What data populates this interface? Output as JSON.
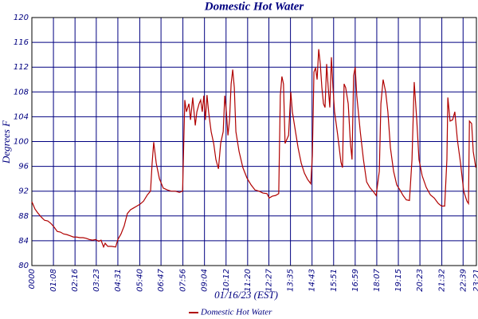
{
  "chart_data": {
    "type": "line",
    "title": "Domestic Hot Water",
    "x_label": "01/16/23 (EST)",
    "y_label": "Degrees F",
    "xlim": [
      0,
      1401
    ],
    "ylim": [
      80,
      120
    ],
    "xticks": [
      {
        "value": 0,
        "label": "0000"
      },
      {
        "value": 68,
        "label": "01:08"
      },
      {
        "value": 136,
        "label": "02:16"
      },
      {
        "value": 203,
        "label": "03:23"
      },
      {
        "value": 271,
        "label": "04:31"
      },
      {
        "value": 340,
        "label": "05:40"
      },
      {
        "value": 407,
        "label": "06:47"
      },
      {
        "value": 476,
        "label": "07:56"
      },
      {
        "value": 544,
        "label": "09:04"
      },
      {
        "value": 612,
        "label": "10:12"
      },
      {
        "value": 680,
        "label": "11:20"
      },
      {
        "value": 747,
        "label": "12:27"
      },
      {
        "value": 815,
        "label": "13:35"
      },
      {
        "value": 883,
        "label": "14:43"
      },
      {
        "value": 951,
        "label": "15:51"
      },
      {
        "value": 1019,
        "label": "16:59"
      },
      {
        "value": 1087,
        "label": "18:07"
      },
      {
        "value": 1155,
        "label": "19:15"
      },
      {
        "value": 1223,
        "label": "20:23"
      },
      {
        "value": 1292,
        "label": "21:32"
      },
      {
        "value": 1359,
        "label": "22:39"
      },
      {
        "value": 1401,
        "label": "23:21"
      }
    ],
    "yticks": [
      80,
      84,
      88,
      92,
      96,
      100,
      104,
      108,
      112,
      116,
      120
    ],
    "grid": true,
    "x": [
      0,
      10,
      20,
      30,
      40,
      50,
      60,
      70,
      80,
      90,
      100,
      110,
      121,
      131,
      141,
      151,
      161,
      171,
      181,
      191,
      201,
      211,
      218,
      226,
      231,
      239,
      251,
      264,
      271,
      281,
      291,
      301,
      311,
      321,
      331,
      341,
      352,
      364,
      374,
      379,
      384,
      392,
      402,
      414,
      427,
      439,
      452,
      465,
      475,
      482,
      487,
      495,
      500,
      507,
      515,
      520,
      527,
      532,
      537,
      542,
      547,
      552,
      557,
      565,
      573,
      580,
      588,
      595,
      603,
      608,
      613,
      618,
      623,
      628,
      633,
      638,
      643,
      653,
      665,
      678,
      691,
      703,
      716,
      728,
      741,
      748,
      758,
      768,
      778,
      783,
      788,
      793,
      798,
      809,
      816,
      821,
      829,
      839,
      849,
      859,
      869,
      879,
      884,
      889,
      894,
      899,
      904,
      909,
      914,
      919,
      924,
      929,
      934,
      939,
      944,
      949,
      954,
      964,
      974,
      979,
      984,
      989,
      997,
      1004,
      1009,
      1014,
      1019,
      1024,
      1035,
      1045,
      1055,
      1065,
      1075,
      1085,
      1095,
      1100,
      1107,
      1115,
      1122,
      1130,
      1140,
      1150,
      1160,
      1170,
      1180,
      1190,
      1198,
      1205,
      1213,
      1220,
      1230,
      1243,
      1256,
      1268,
      1281,
      1291,
      1301,
      1308,
      1311,
      1318,
      1326,
      1333,
      1341,
      1351,
      1361,
      1371,
      1376,
      1379,
      1386,
      1391,
      1399
    ],
    "series": [
      {
        "name": "Domestic Hot Water",
        "color": "#b00000",
        "values": [
          90.3,
          89.1,
          88.4,
          87.8,
          87.3,
          87.2,
          86.8,
          86.2,
          85.5,
          85.4,
          85.1,
          85.0,
          84.8,
          84.6,
          84.6,
          84.5,
          84.5,
          84.4,
          84.2,
          84.1,
          84.2,
          83.9,
          84.1,
          83.0,
          83.6,
          83.1,
          83.1,
          83.0,
          84.2,
          85.1,
          86.4,
          88.4,
          89.0,
          89.3,
          89.6,
          89.9,
          90.4,
          91.4,
          92.0,
          96.5,
          99.9,
          96.5,
          94.0,
          92.5,
          92.2,
          92.0,
          92.0,
          91.8,
          92.0,
          106.7,
          104.8,
          106.1,
          103.5,
          107.1,
          102.6,
          104.8,
          106.1,
          106.7,
          104.8,
          107.4,
          103.5,
          107.5,
          104.8,
          101.6,
          99.7,
          97.1,
          95.6,
          99.7,
          101.6,
          107.4,
          104.8,
          101.0,
          103.5,
          109.3,
          111.6,
          108.7,
          101.6,
          98.4,
          95.8,
          94.1,
          93.0,
          92.2,
          92.0,
          91.7,
          91.6,
          90.9,
          91.2,
          91.3,
          91.6,
          107.4,
          110.5,
          109.3,
          99.7,
          101.0,
          108.0,
          104.8,
          102.2,
          99.0,
          96.5,
          94.9,
          93.9,
          93.2,
          97.7,
          111.2,
          111.9,
          110.0,
          114.9,
          112.5,
          108.7,
          106.1,
          105.5,
          112.5,
          108.7,
          105.5,
          113.6,
          108.7,
          104.8,
          101.0,
          96.7,
          95.8,
          109.3,
          108.7,
          106.1,
          99.7,
          97.1,
          110.6,
          112.0,
          107.4,
          101.6,
          97.1,
          93.5,
          92.6,
          92.0,
          91.3,
          95.2,
          106.1,
          110.0,
          108.0,
          104.8,
          99.0,
          95.2,
          93.0,
          92.2,
          91.3,
          90.6,
          90.5,
          97.1,
          109.6,
          103.5,
          97.1,
          94.5,
          92.6,
          91.4,
          90.9,
          90.0,
          89.6,
          89.6,
          97.1,
          107.1,
          103.3,
          103.5,
          104.8,
          100.3,
          96.5,
          92.0,
          90.4,
          90.0,
          103.3,
          102.9,
          98.4,
          95.8
        ]
      }
    ]
  }
}
